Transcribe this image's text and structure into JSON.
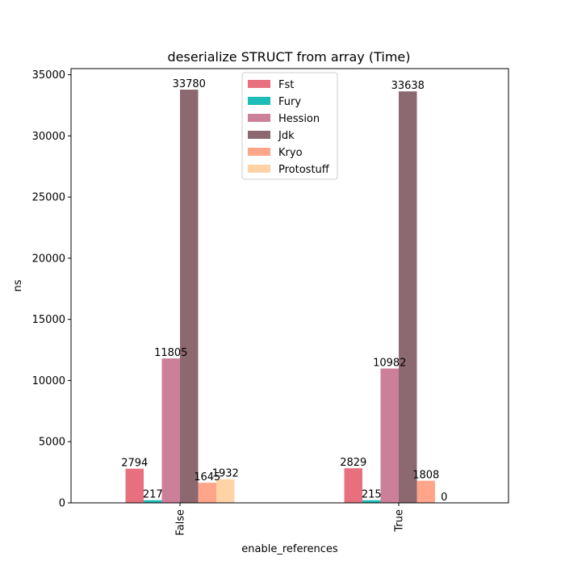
{
  "chart_data": {
    "type": "bar",
    "title": "deserialize STRUCT from array (Time)",
    "xlabel": "enable_references",
    "ylabel": "ns",
    "categories": [
      "False",
      "True"
    ],
    "ylim": [
      0,
      35500
    ],
    "yticks": [
      0,
      5000,
      10000,
      15000,
      20000,
      25000,
      30000,
      35000
    ],
    "grid": false,
    "legend_position": "top-center",
    "series": [
      {
        "name": "Fst",
        "color": "#e8707e",
        "values": [
          2794,
          2829
        ]
      },
      {
        "name": "Fury",
        "color": "#1cbcb8",
        "values": [
          217,
          215
        ]
      },
      {
        "name": "Hession",
        "color": "#cc7f99",
        "values": [
          11805,
          10982
        ]
      },
      {
        "name": "Jdk",
        "color": "#8c6870",
        "values": [
          33780,
          33638
        ]
      },
      {
        "name": "Kryo",
        "color": "#ffa68a",
        "values": [
          1645,
          1808
        ]
      },
      {
        "name": "Protostuff",
        "color": "#ffd3a6",
        "values": [
          1932,
          0
        ]
      }
    ]
  }
}
